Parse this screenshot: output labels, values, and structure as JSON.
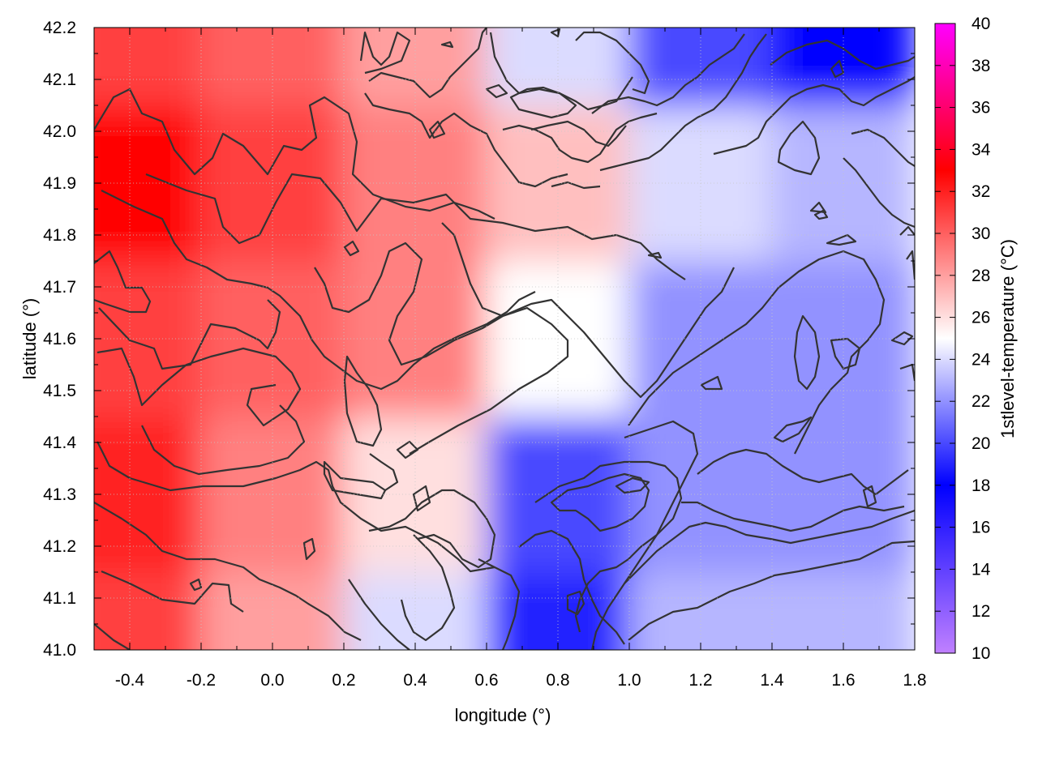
{
  "chart_data": {
    "type": "heatmap",
    "title": "",
    "xlabel": "longitude (°)",
    "ylabel": "latitude (°)",
    "colorbar_label": "1stlevel-temperature (°C)",
    "xlim": [
      -0.5,
      1.8
    ],
    "ylim": [
      41.0,
      42.2
    ],
    "x_ticks": [
      -0.4,
      -0.2,
      0.0,
      0.2,
      0.4,
      0.6,
      0.8,
      1.0,
      1.2,
      1.4,
      1.6,
      1.8
    ],
    "x_tick_labels": [
      "-0.4",
      "-0.2",
      "0.0",
      "0.2",
      "0.4",
      "0.6",
      "0.8",
      "1.0",
      "1.2",
      "1.4",
      "1.6",
      "1.8"
    ],
    "y_ticks": [
      41.0,
      41.1,
      41.2,
      41.3,
      41.4,
      41.5,
      41.6,
      41.7,
      41.8,
      41.9,
      42.0,
      42.1,
      42.2
    ],
    "y_tick_labels": [
      "41.0",
      "41.1",
      "41.2",
      "41.3",
      "41.4",
      "41.5",
      "41.6",
      "41.7",
      "41.8",
      "41.9",
      "42.0",
      "42.1",
      "42.2"
    ],
    "color_range": [
      10,
      40
    ],
    "colorbar_ticks": [
      10,
      12,
      14,
      16,
      18,
      20,
      22,
      24,
      26,
      28,
      30,
      32,
      34,
      36,
      38,
      40
    ],
    "colorbar_tick_labels": [
      "10",
      "12",
      "14",
      "16",
      "18",
      "20",
      "22",
      "24",
      "26",
      "28",
      "30",
      "32",
      "34",
      "36",
      "38",
      "40"
    ],
    "colormap": [
      {
        "value": 10,
        "color": "#c080ff"
      },
      {
        "value": 18,
        "color": "#0000ff"
      },
      {
        "value": 25,
        "color": "#ffffff"
      },
      {
        "value": 33,
        "color": "#ff0000"
      },
      {
        "value": 40,
        "color": "#ff00ff"
      }
    ],
    "grid": true,
    "contours": true,
    "contour_color": "#333333",
    "field_samples": {
      "lon": [
        -0.4,
        0.0,
        0.4,
        0.8,
        1.2,
        1.6
      ],
      "lat": [
        41.0,
        41.3,
        41.6,
        41.9,
        42.2
      ],
      "temperature": [
        [
          31,
          28,
          24,
          19,
          23,
          23
        ],
        [
          32,
          29,
          26,
          20,
          22,
          22
        ],
        [
          31,
          30,
          29,
          25,
          22,
          22
        ],
        [
          33,
          31,
          29,
          27,
          24,
          23
        ],
        [
          31,
          30,
          28,
          24,
          20,
          18
        ]
      ]
    }
  }
}
